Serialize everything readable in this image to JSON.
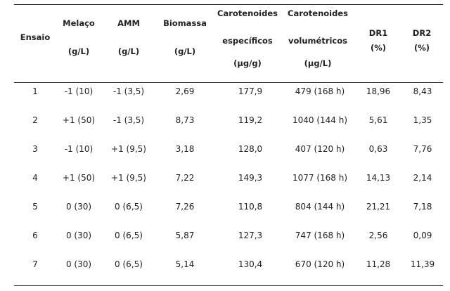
{
  "table": {
    "headers": {
      "ensaio": [
        "Ensaio"
      ],
      "melaco": [
        "Melaço",
        "(g/L)"
      ],
      "amm": [
        "AMM",
        "(g/L)"
      ],
      "biomassa": [
        "Biomassa",
        "(g/L)"
      ],
      "car_esp": [
        "Carotenoides",
        "específicos",
        "(µg/g)"
      ],
      "car_vol": [
        "Carotenoides",
        "volumétricos",
        "(µg/L)"
      ],
      "dr1": [
        "DR1",
        "(%)"
      ],
      "dr2": [
        "DR2",
        "(%)"
      ]
    },
    "rows": [
      [
        "1",
        "-1 (10)",
        "-1 (3,5)",
        "2,69",
        "177,9",
        "479 (168 h)",
        "18,96",
        "8,43"
      ],
      [
        "2",
        "+1 (50)",
        "-1 (3,5)",
        "8,73",
        "119,2",
        "1040 (144 h)",
        "5,61",
        "1,35"
      ],
      [
        "3",
        "-1 (10)",
        "+1 (9,5)",
        "3,18",
        "128,0",
        "407 (120 h)",
        "0,63",
        "7,76"
      ],
      [
        "4",
        "+1 (50)",
        "+1 (9,5)",
        "7,22",
        "149,3",
        "1077 (168 h)",
        "14,13",
        "2,14"
      ],
      [
        "5",
        "0 (30)",
        "0 (6,5)",
        "7,26",
        "110,8",
        "804 (144 h)",
        "21,21",
        "7,18"
      ],
      [
        "6",
        "0 (30)",
        "0 (6,5)",
        "5,87",
        "127,3",
        "747 (168 h)",
        "2,56",
        "0,09"
      ],
      [
        "7",
        "0 (30)",
        "0 (6,5)",
        "5,14",
        "130,4",
        "670 (120 h)",
        "11,28",
        "11,39"
      ]
    ]
  }
}
